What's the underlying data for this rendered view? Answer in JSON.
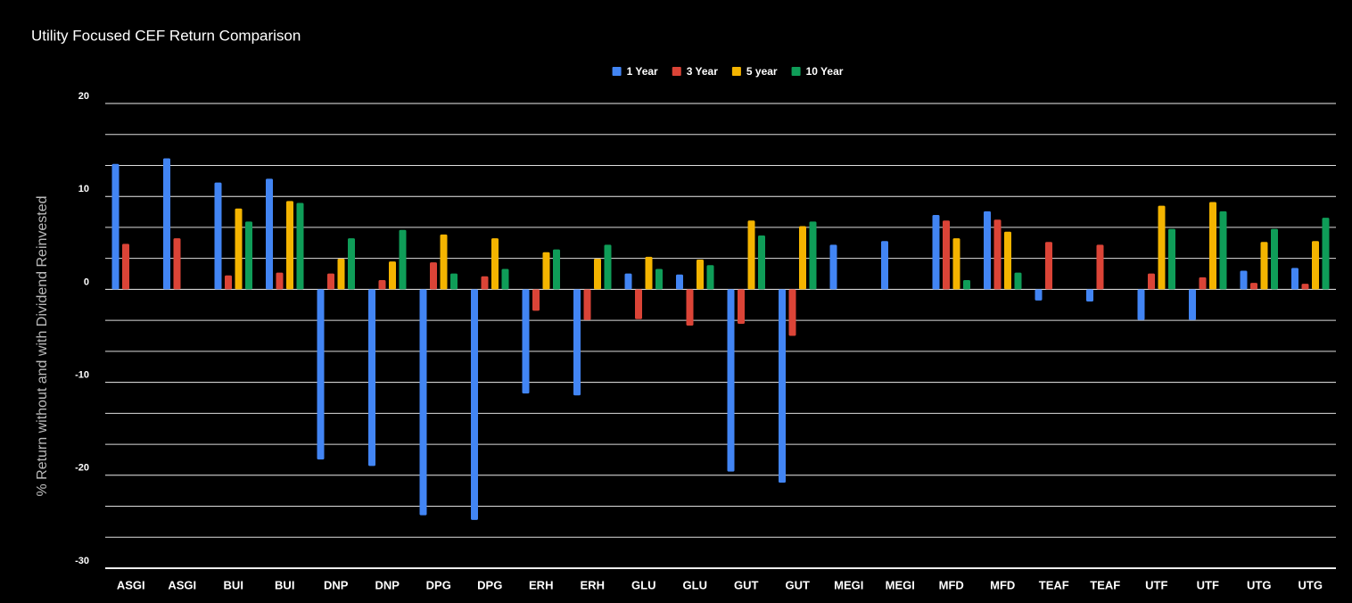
{
  "chart_data": {
    "type": "bar",
    "title": "Utility Focused CEF Return Comparison",
    "y_label": "% Return without and with Dividend Reinvested",
    "categories": [
      "ASGI",
      "ASGI",
      "BUI",
      "BUI",
      "DNP",
      "DNP",
      "DPG",
      "DPG",
      "ERH",
      "ERH",
      "GLU",
      "GLU",
      "GUT",
      "GUT",
      "MEGI",
      "MEGI",
      "MFD",
      "MFD",
      "TEAF",
      "TEAF",
      "UTF",
      "UTF",
      "UTG",
      "UTG"
    ],
    "series": [
      {
        "name": "1 Year",
        "color": "#4285f4",
        "values": [
          13.5,
          14.1,
          11.5,
          11.9,
          -18.3,
          -19.0,
          -24.3,
          -24.8,
          -11.2,
          -11.4,
          1.7,
          1.6,
          -19.6,
          -20.8,
          4.8,
          5.2,
          8.0,
          8.4,
          -1.2,
          -1.3,
          -3.3,
          -3.3,
          2.0,
          2.3
        ]
      },
      {
        "name": "3 Year",
        "color": "#db4437",
        "values": [
          4.9,
          5.5,
          1.5,
          1.8,
          1.7,
          1.0,
          2.9,
          1.4,
          -2.3,
          -3.3,
          -3.2,
          -3.9,
          -3.7,
          -5.0,
          null,
          null,
          7.4,
          7.5,
          5.1,
          4.8,
          1.7,
          1.3,
          0.7,
          0.6
        ]
      },
      {
        "name": "5 year",
        "color": "#f4b400",
        "values": [
          null,
          null,
          8.7,
          9.5,
          3.3,
          3.0,
          5.9,
          5.5,
          4.0,
          3.3,
          3.5,
          3.2,
          7.4,
          6.8,
          null,
          null,
          5.5,
          6.2,
          null,
          null,
          9.0,
          9.4,
          5.1,
          5.2
        ]
      },
      {
        "name": "10 Year",
        "color": "#0f9d58",
        "values": [
          null,
          null,
          7.3,
          9.3,
          5.5,
          6.4,
          1.7,
          2.2,
          4.3,
          4.8,
          2.2,
          2.6,
          5.8,
          7.3,
          null,
          null,
          1.0,
          1.8,
          null,
          null,
          6.5,
          8.4,
          6.5,
          7.7
        ]
      }
    ],
    "ylim": [
      -30,
      20
    ],
    "yticks": [
      -30,
      -20,
      -10,
      0,
      10,
      20
    ],
    "y_minor_gridlines": [
      -26.667,
      -23.333,
      -16.667,
      -13.333,
      -6.667,
      -3.333,
      3.333,
      6.667,
      13.333,
      16.667
    ],
    "grid": true,
    "legend": "top"
  }
}
